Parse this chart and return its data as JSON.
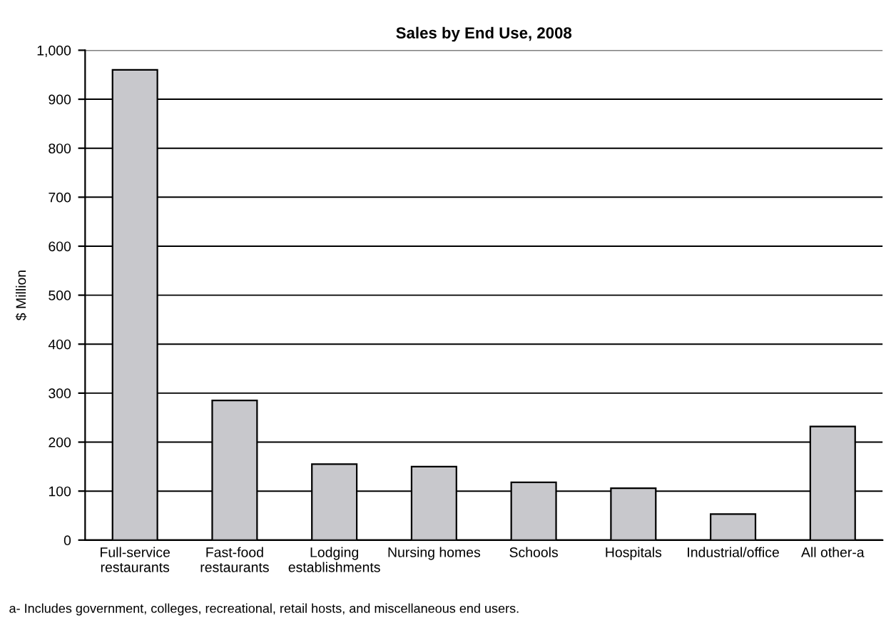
{
  "chart_data": {
    "type": "bar",
    "title": "Sales by End Use, 2008",
    "ylabel": "$ Million",
    "categories": [
      "Full-service\nrestaurants",
      "Fast-food\nrestaurants",
      "Lodging\nestablishments",
      "Nursing homes",
      "Schools",
      "Hospitals",
      "Industrial/office",
      "All other-a"
    ],
    "values": [
      960,
      285,
      155,
      150,
      118,
      106,
      53,
      232
    ],
    "color": "#c8c8cc",
    "ylim": [
      0,
      1000
    ],
    "yticks": [
      0,
      100,
      200,
      300,
      400,
      500,
      600,
      700,
      800,
      900,
      {
        "value": 1000,
        "label": "1,000"
      }
    ],
    "grid": "y",
    "annotations": [
      "a- Includes government, colleges, recreational, retail hosts, and miscellaneous end users."
    ]
  }
}
